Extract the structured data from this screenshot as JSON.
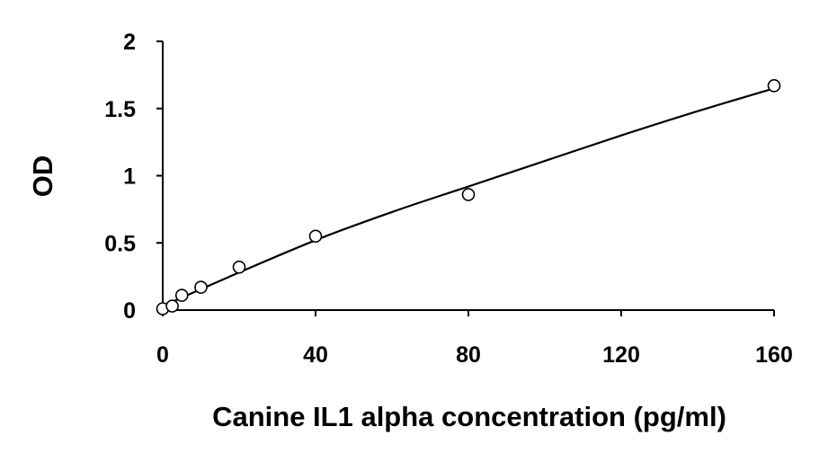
{
  "chart_data": {
    "type": "scatter",
    "xlabel": "Canine IL1 alpha concentration (pg/ml)",
    "ylabel": "OD",
    "xlim": [
      0,
      160
    ],
    "ylim": [
      0,
      2
    ],
    "x_ticks": [
      "0",
      "40",
      "80",
      "120",
      "160"
    ],
    "y_ticks": [
      "0",
      "0.5",
      "1",
      "1.5",
      "2"
    ],
    "grid": false,
    "legend": "none",
    "series": [
      {
        "marker": "open-circle",
        "points": [
          {
            "x": 0,
            "y": 0.01
          },
          {
            "x": 2.5,
            "y": 0.03
          },
          {
            "x": 5,
            "y": 0.11
          },
          {
            "x": 10,
            "y": 0.17
          },
          {
            "x": 20,
            "y": 0.32
          },
          {
            "x": 40,
            "y": 0.55
          },
          {
            "x": 80,
            "y": 0.86
          },
          {
            "x": 160,
            "y": 1.67
          }
        ]
      }
    ],
    "fit_curve": {
      "type": "smooth-line",
      "points": [
        {
          "x": 0,
          "y": 0.03
        },
        {
          "x": 20,
          "y": 0.28
        },
        {
          "x": 40,
          "y": 0.52
        },
        {
          "x": 60,
          "y": 0.73
        },
        {
          "x": 80,
          "y": 0.92
        },
        {
          "x": 100,
          "y": 1.11
        },
        {
          "x": 120,
          "y": 1.3
        },
        {
          "x": 140,
          "y": 1.48
        },
        {
          "x": 160,
          "y": 1.65
        }
      ]
    }
  }
}
